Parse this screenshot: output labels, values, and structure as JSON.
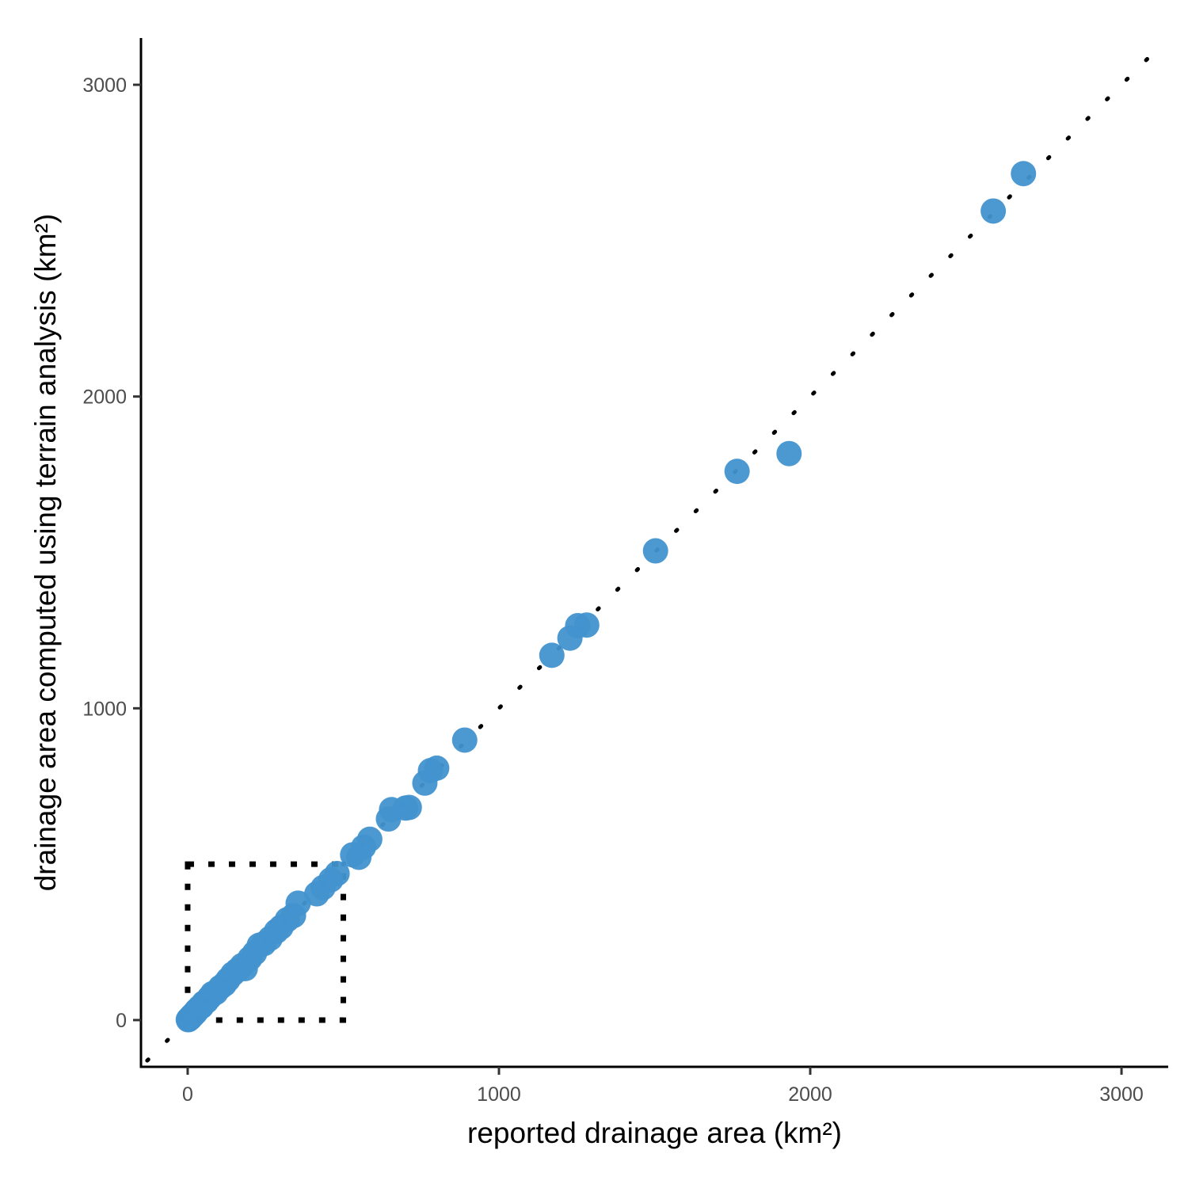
{
  "chart_data": {
    "type": "scatter",
    "title": "",
    "xlabel": "reported drainage area (km²)",
    "ylabel": "drainage area computed using terrain analysis (km²)",
    "xlim": [
      -150,
      3150
    ],
    "ylim": [
      -150,
      3150
    ],
    "x_ticks": [
      0,
      1000,
      2000,
      3000
    ],
    "y_ticks": [
      0,
      1000,
      2000,
      3000
    ],
    "x_tick_labels": [
      "0",
      "1000",
      "2000",
      "3000"
    ],
    "y_tick_labels": [
      "0",
      "1000",
      "2000",
      "3000"
    ],
    "grid": false,
    "legend": "none",
    "point_color": "#4292cf",
    "reference_line": {
      "style": "dotted",
      "slope": 1,
      "intercept": 0,
      "from": -130,
      "to": 3140
    },
    "highlight_box": {
      "style": "dotted",
      "x": [
        0,
        500
      ],
      "y": [
        0,
        500
      ]
    },
    "points": [
      {
        "x": 2,
        "y": 1
      },
      {
        "x": 4,
        "y": 3
      },
      {
        "x": 6,
        "y": 5
      },
      {
        "x": 8,
        "y": 6
      },
      {
        "x": 10,
        "y": 9
      },
      {
        "x": 12,
        "y": 12
      },
      {
        "x": 15,
        "y": 14
      },
      {
        "x": 18,
        "y": 17
      },
      {
        "x": 20,
        "y": 20
      },
      {
        "x": 25,
        "y": 24
      },
      {
        "x": 28,
        "y": 30
      },
      {
        "x": 32,
        "y": 33
      },
      {
        "x": 38,
        "y": 40
      },
      {
        "x": 45,
        "y": 44
      },
      {
        "x": 52,
        "y": 55
      },
      {
        "x": 60,
        "y": 60
      },
      {
        "x": 70,
        "y": 72
      },
      {
        "x": 80,
        "y": 85
      },
      {
        "x": 90,
        "y": 88
      },
      {
        "x": 105,
        "y": 105
      },
      {
        "x": 118,
        "y": 115
      },
      {
        "x": 130,
        "y": 130
      },
      {
        "x": 145,
        "y": 148
      },
      {
        "x": 160,
        "y": 160
      },
      {
        "x": 175,
        "y": 175
      },
      {
        "x": 185,
        "y": 165
      },
      {
        "x": 200,
        "y": 198
      },
      {
        "x": 215,
        "y": 215
      },
      {
        "x": 230,
        "y": 240
      },
      {
        "x": 245,
        "y": 245
      },
      {
        "x": 265,
        "y": 262
      },
      {
        "x": 285,
        "y": 285
      },
      {
        "x": 300,
        "y": 298
      },
      {
        "x": 320,
        "y": 322
      },
      {
        "x": 340,
        "y": 335
      },
      {
        "x": 355,
        "y": 375
      },
      {
        "x": 415,
        "y": 405
      },
      {
        "x": 435,
        "y": 425
      },
      {
        "x": 460,
        "y": 450
      },
      {
        "x": 480,
        "y": 470
      },
      {
        "x": 530,
        "y": 530
      },
      {
        "x": 550,
        "y": 522
      },
      {
        "x": 565,
        "y": 555
      },
      {
        "x": 585,
        "y": 580
      },
      {
        "x": 645,
        "y": 645
      },
      {
        "x": 655,
        "y": 675
      },
      {
        "x": 700,
        "y": 680
      },
      {
        "x": 712,
        "y": 682
      },
      {
        "x": 762,
        "y": 760
      },
      {
        "x": 780,
        "y": 800
      },
      {
        "x": 800,
        "y": 808
      },
      {
        "x": 890,
        "y": 898
      },
      {
        "x": 1170,
        "y": 1170
      },
      {
        "x": 1228,
        "y": 1225
      },
      {
        "x": 1253,
        "y": 1265
      },
      {
        "x": 1282,
        "y": 1267
      },
      {
        "x": 1503,
        "y": 1505
      },
      {
        "x": 1765,
        "y": 1760
      },
      {
        "x": 1932,
        "y": 1817
      },
      {
        "x": 2588,
        "y": 2595
      },
      {
        "x": 2685,
        "y": 2715
      }
    ]
  }
}
